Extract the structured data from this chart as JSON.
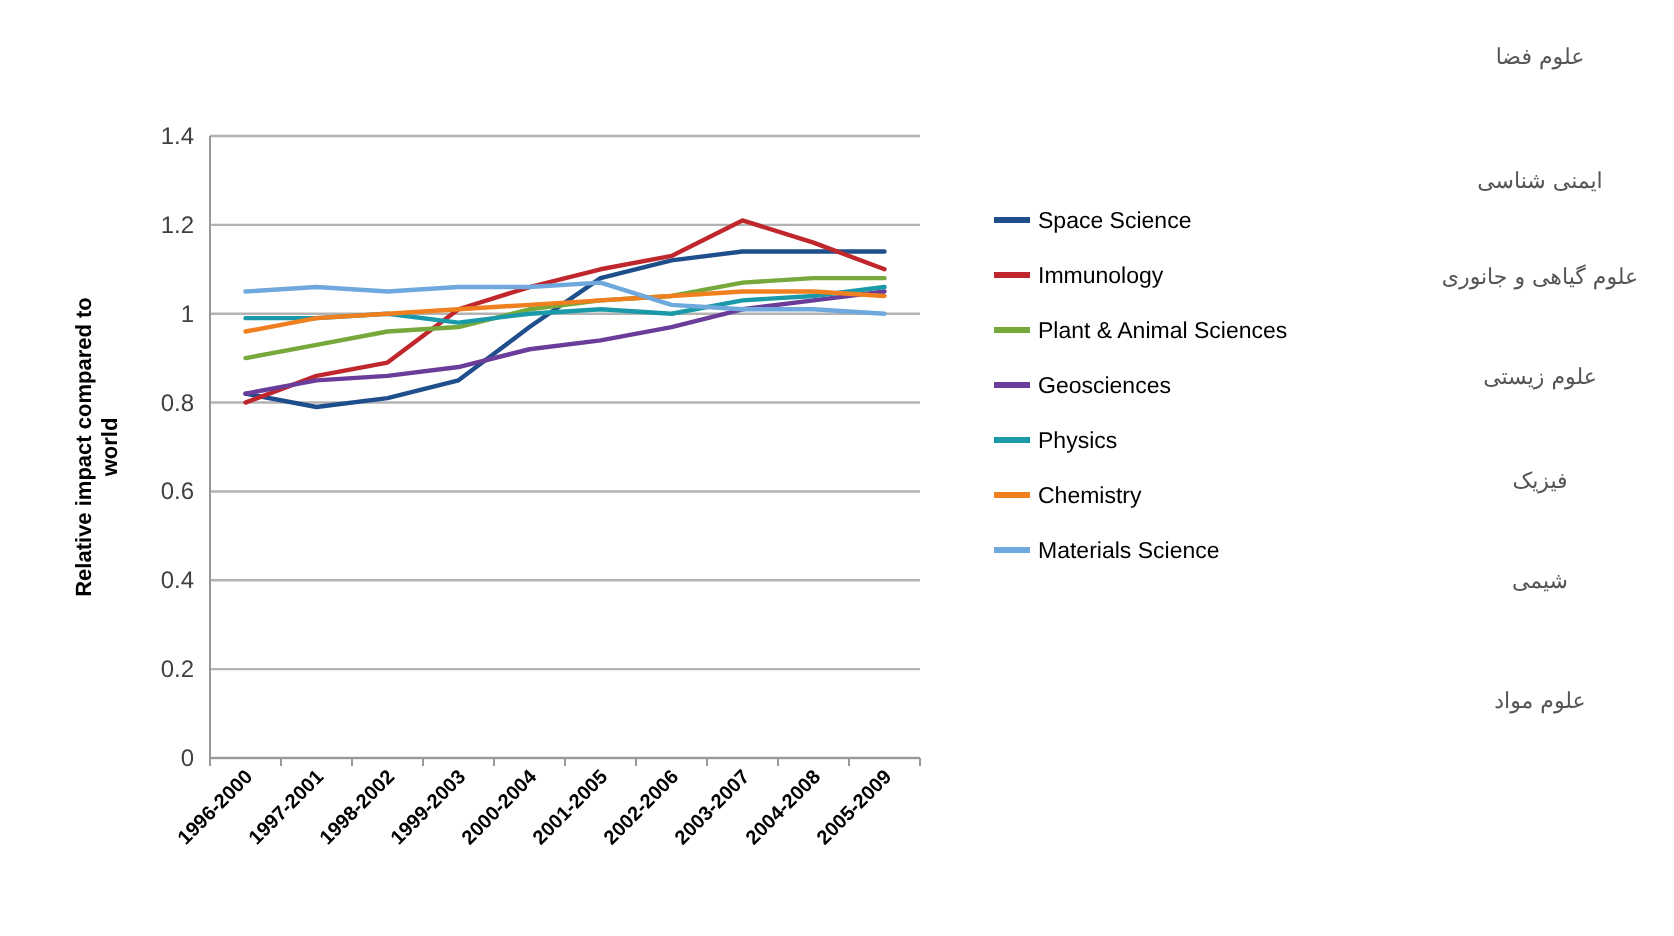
{
  "chart_data": {
    "type": "line",
    "ylabel": "Relative impact compared to world",
    "categories": [
      "1996-2000",
      "1997-2001",
      "1998-2002",
      "1999-2003",
      "2000-2004",
      "2001-2005",
      "2002-2006",
      "2003-2007",
      "2004-2008",
      "2005-2009"
    ],
    "series": [
      {
        "name": "Space Science",
        "color": "#1f4e8c",
        "values": [
          0.82,
          0.79,
          0.81,
          0.85,
          0.97,
          1.08,
          1.12,
          1.14,
          1.14,
          1.14
        ]
      },
      {
        "name": "Immunology",
        "color": "#c0272d",
        "values": [
          0.8,
          0.86,
          0.89,
          1.01,
          1.06,
          1.1,
          1.13,
          1.21,
          1.16,
          1.1
        ]
      },
      {
        "name": "Plant & Animal Sciences",
        "color": "#77a83b",
        "values": [
          0.9,
          0.93,
          0.96,
          0.97,
          1.01,
          1.03,
          1.04,
          1.07,
          1.08,
          1.08
        ]
      },
      {
        "name": "Geosciences",
        "color": "#6a3d9a",
        "values": [
          0.82,
          0.85,
          0.86,
          0.88,
          0.92,
          0.94,
          0.97,
          1.01,
          1.03,
          1.05
        ]
      },
      {
        "name": "Physics",
        "color": "#1a9aa8",
        "values": [
          0.99,
          0.99,
          1.0,
          0.98,
          1.0,
          1.01,
          1.0,
          1.03,
          1.04,
          1.06
        ]
      },
      {
        "name": "Chemistry",
        "color": "#f07f1f",
        "values": [
          0.96,
          0.99,
          1.0,
          1.01,
          1.02,
          1.03,
          1.04,
          1.05,
          1.05,
          1.04
        ]
      },
      {
        "name": "Materials Science",
        "color": "#6fa8dc",
        "values": [
          1.05,
          1.06,
          1.05,
          1.06,
          1.06,
          1.07,
          1.02,
          1.01,
          1.01,
          1.0
        ]
      }
    ],
    "ylim": [
      0,
      1.4
    ],
    "yticks": [
      0,
      0.2,
      0.4,
      0.6,
      0.8,
      1,
      1.2,
      1.4
    ],
    "grid": "y",
    "legend": "right",
    "marker": "none",
    "line_style": "solid",
    "annotations": [
      "علوم فضا",
      "ایمنی شناسی",
      "علوم گیاهی و جانوری",
      "علوم زیستی",
      "فیزیک",
      "شیمی",
      "علوم مواد"
    ]
  }
}
